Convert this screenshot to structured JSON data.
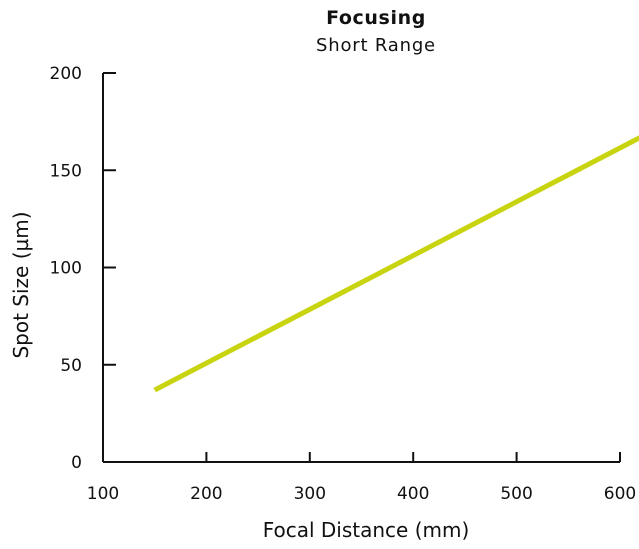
{
  "chart_data": {
    "type": "line",
    "title": "Focusing",
    "subtitle": "Short Range",
    "xlabel": "Focal Distance (mm)",
    "ylabel": "Spot Size (µm)",
    "xlim": [
      100,
      600
    ],
    "ylim": [
      0,
      200
    ],
    "x_ticks": [
      "100",
      "200",
      "300",
      "400",
      "500",
      "600"
    ],
    "y_ticks": [
      "0",
      "50",
      "100",
      "150",
      "200"
    ],
    "grid": false,
    "series": [
      {
        "color": "#c8d410",
        "x": [
          150,
          620
        ],
        "y": [
          37,
          167
        ]
      }
    ]
  }
}
